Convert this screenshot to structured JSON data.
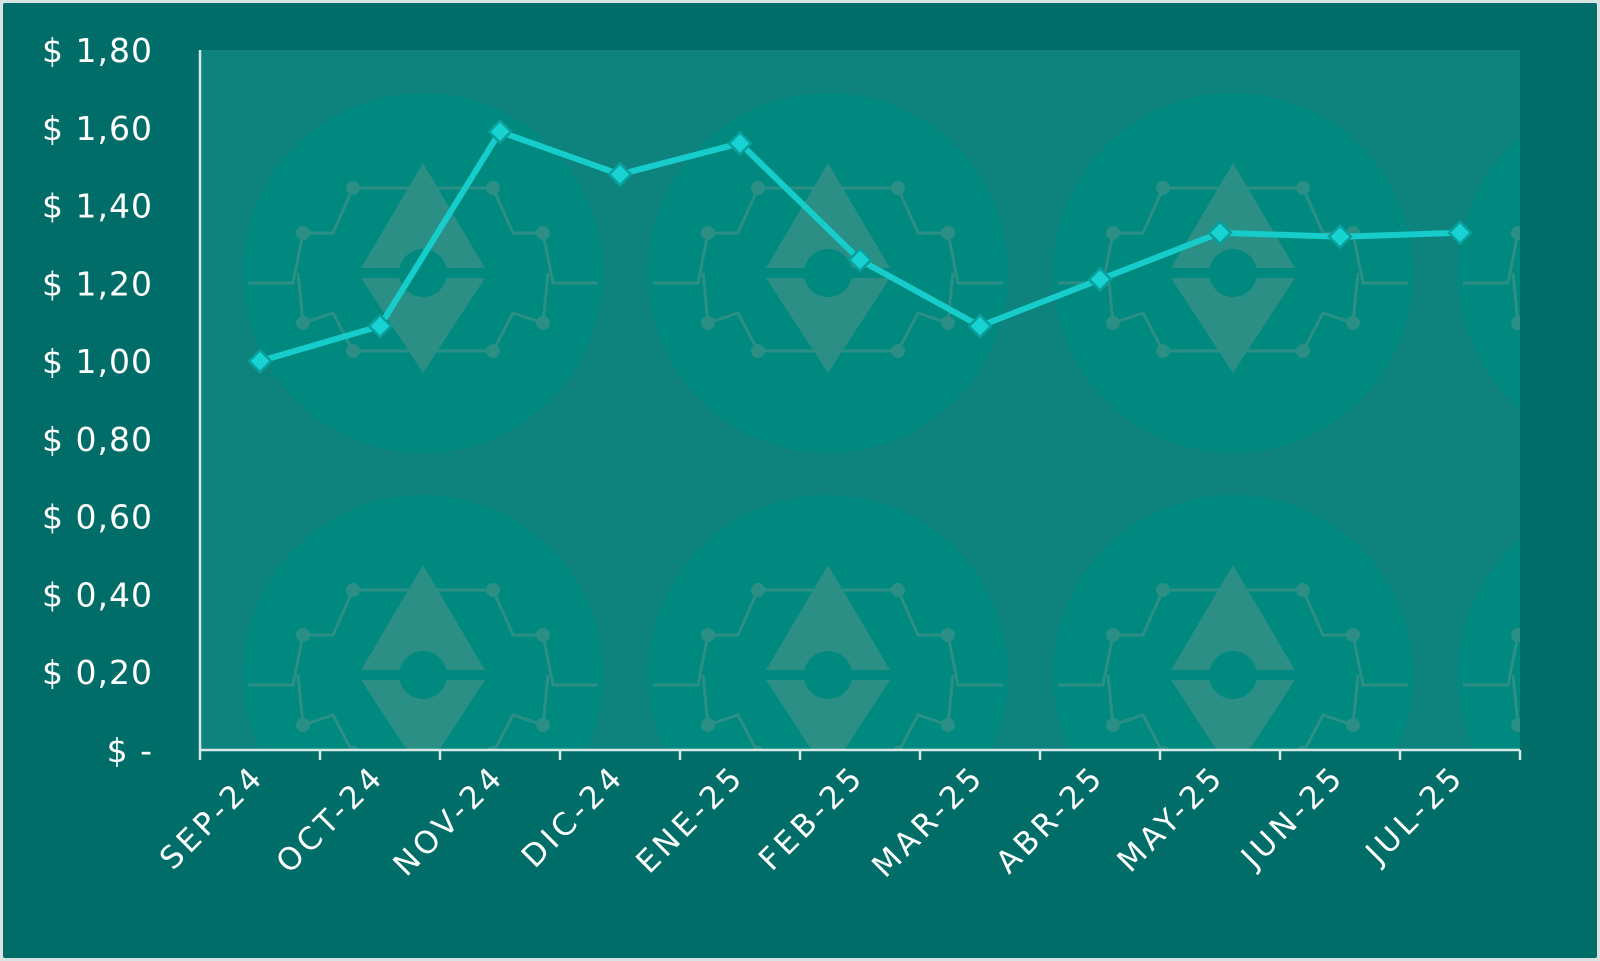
{
  "chart_data": {
    "type": "line",
    "categories": [
      "SEP-24",
      "OCT-24",
      "NOV-24",
      "DIC-24",
      "ENE-25",
      "FEB-25",
      "MAR-25",
      "ABR-25",
      "MAY-25",
      "JUN-25",
      "JUL-25"
    ],
    "series": [
      {
        "values": [
          1.0,
          1.09,
          1.59,
          1.48,
          1.56,
          1.26,
          1.09,
          1.21,
          1.33,
          1.32,
          1.33
        ]
      }
    ],
    "y_ticks": [
      "$ -",
      "$ 0,20",
      "$ 0,40",
      "$ 0,60",
      "$ 0,80",
      "$ 1,00",
      "$ 1,20",
      "$ 1,40",
      "$ 1,60",
      "$ 1,80"
    ],
    "ylim": [
      0,
      1.8
    ],
    "title": "",
    "xlabel": "",
    "ylabel": "",
    "grid": false,
    "legend": "none",
    "colors": {
      "frame": "#006d69",
      "plot_area": "#0e837d",
      "watermark_circle": "#00897f",
      "watermark_mark": "#2b8f85",
      "line": "#16cdcb",
      "marker_fill": "#17d3d1",
      "marker_stroke": "#0a9e9c",
      "axis": "#d6e9e7",
      "text": "#ffffff"
    },
    "background_pattern_icon": "crypto-coin-watermark-icon"
  }
}
